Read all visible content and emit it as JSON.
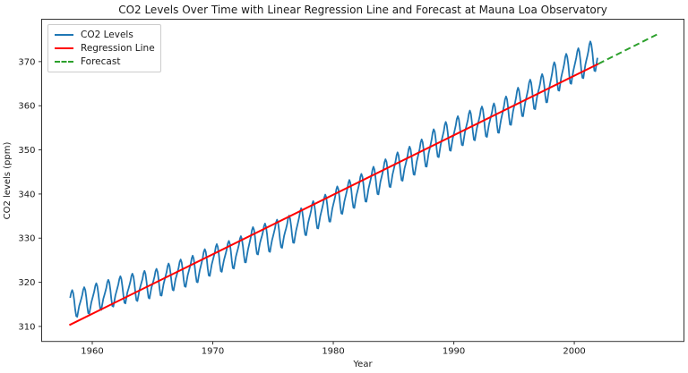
{
  "figure": {
    "title": "CO2 Levels Over Time with Linear Regression Line and Forecast at Mauna Loa Observatory",
    "xlabel": "Year",
    "ylabel": "CO2 levels (ppm)",
    "background_color": "#ffffff",
    "frame_color": "#333333",
    "text_color": "#1a1a1a"
  },
  "legend": {
    "position": "upper left",
    "items": [
      {
        "label": "CO2 Levels",
        "color": "#1f77b4",
        "dash": "solid"
      },
      {
        "label": "Regression Line",
        "color": "#ff0000",
        "dash": "solid"
      },
      {
        "label": "Forecast",
        "color": "#2ca02c",
        "dash": "dashed"
      }
    ]
  },
  "chart_data": {
    "type": "line",
    "title": "CO2 Levels Over Time with Linear Regression Line and Forecast at Mauna Loa Observatory",
    "xlabel": "Year",
    "ylabel": "CO2 levels (ppm)",
    "xlim": [
      1955.8,
      2009.1
    ],
    "ylim": [
      306.6,
      379.6
    ],
    "x_ticks": [
      1960,
      1970,
      1980,
      1990,
      2000
    ],
    "y_ticks": [
      310,
      320,
      330,
      340,
      350,
      360,
      370
    ],
    "grid": false,
    "series": [
      {
        "name": "CO2 Levels",
        "color": "#1f77b4",
        "style": "solid",
        "sampling": "monthly",
        "x_start": 1958.167,
        "x_end": 2002.0,
        "start_month": 3,
        "annual_means": {
          "start_year": 1958,
          "values": [
            315.33,
            315.97,
            316.91,
            317.64,
            318.45,
            318.99,
            319.62,
            320.04,
            321.37,
            322.18,
            323.05,
            324.62,
            325.68,
            326.32,
            327.46,
            329.68,
            330.19,
            331.12,
            332.03,
            333.84,
            335.41,
            336.84,
            338.76,
            340.12,
            341.48,
            343.15,
            344.85,
            346.35,
            347.61,
            349.31,
            351.69,
            353.2,
            354.45,
            355.7,
            356.54,
            357.21,
            358.96,
            360.97,
            362.74,
            363.88,
            366.84,
            368.54,
            369.71,
            371.32
          ]
        },
        "seasonal_cycle_by_month": [
          -0.2,
          0.55,
          1.35,
          2.5,
          3.0,
          2.3,
          0.65,
          -1.5,
          -3.1,
          -3.3,
          -2.1,
          -0.95
        ],
        "seasonal_amplitude_growth": 0.18
      },
      {
        "name": "Regression Line",
        "color": "#ff0000",
        "style": "solid",
        "x": [
          1958.1,
          2002.0
        ],
        "y": [
          310.3,
          369.5
        ]
      },
      {
        "name": "Forecast",
        "color": "#2ca02c",
        "style": "dashed",
        "x": [
          2002.0,
          2006.9
        ],
        "y": [
          369.5,
          376.2
        ]
      }
    ]
  }
}
